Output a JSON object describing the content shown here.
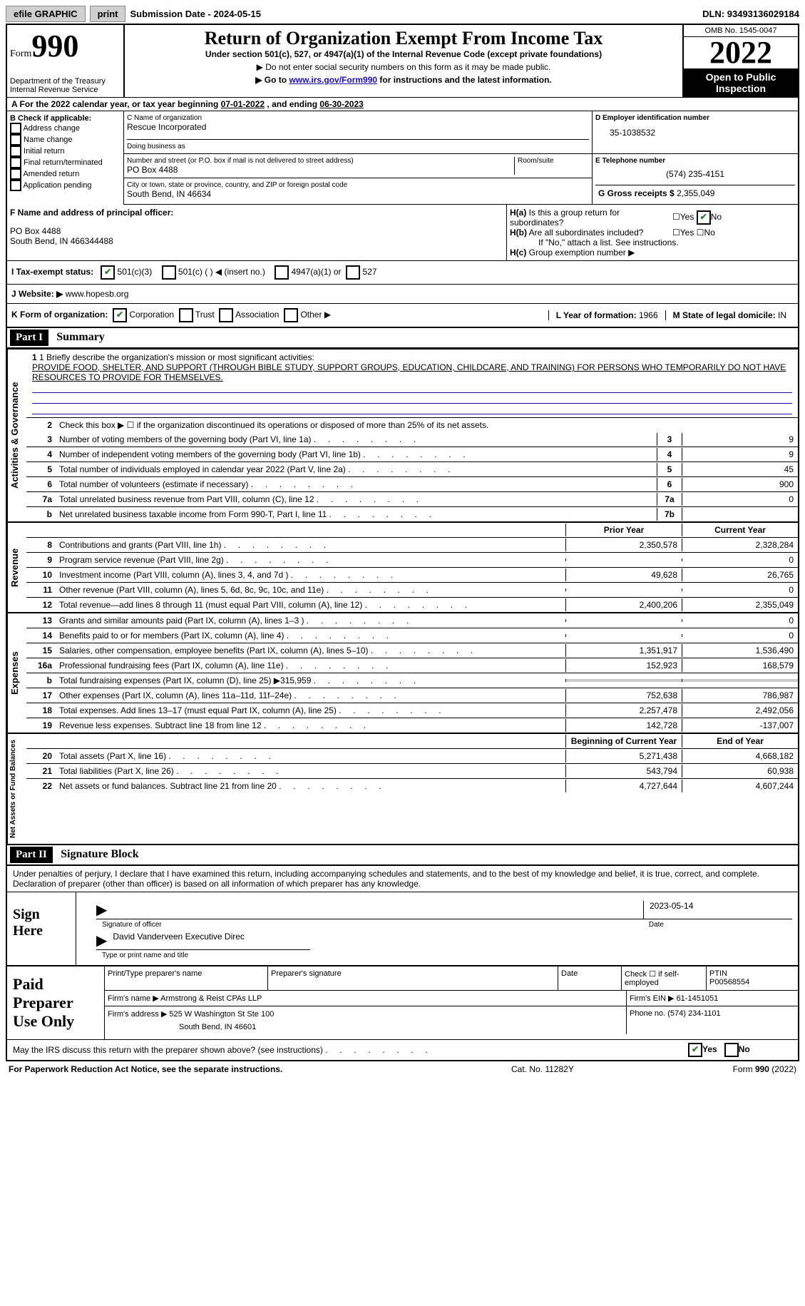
{
  "topbar": {
    "efile": "efile GRAPHIC",
    "print": "print",
    "subdate_label": "Submission Date - ",
    "subdate": "2024-05-15",
    "dln_label": "DLN: ",
    "dln": "93493136029184"
  },
  "header": {
    "form_word": "Form",
    "form_num": "990",
    "dept": "Department of the Treasury\nInternal Revenue Service",
    "title": "Return of Organization Exempt From Income Tax",
    "subtitle": "Under section 501(c), 527, or 4947(a)(1) of the Internal Revenue Code (except private foundations)",
    "note1": "▶ Do not enter social security numbers on this form as it may be made public.",
    "note2_pre": "▶ Go to ",
    "note2_link": "www.irs.gov/Form990",
    "note2_post": " for instructions and the latest information.",
    "omb": "OMB No. 1545-0047",
    "year": "2022",
    "open": "Open to Public Inspection"
  },
  "row_a": {
    "label": "A For the 2022 calendar year, or tax year beginning ",
    "begin": "07-01-2022",
    "mid": "   , and ending ",
    "end": "06-30-2023"
  },
  "col_b": {
    "label": "B Check if applicable:",
    "opts": [
      "Address change",
      "Name change",
      "Initial return",
      "Final return/terminated",
      "Amended return",
      "Application pending"
    ]
  },
  "c": {
    "name_label": "C Name of organization",
    "name": "Rescue Incorporated",
    "dba_label": "Doing business as",
    "dba": "",
    "addr_label": "Number and street (or P.O. box if mail is not delivered to street address)",
    "room_label": "Room/suite",
    "addr": "PO Box 4488",
    "city_label": "City or town, state or province, country, and ZIP or foreign postal code",
    "city": "South Bend, IN  46634"
  },
  "d": {
    "label": "D Employer identification number",
    "ein": "35-1038532"
  },
  "e": {
    "label": "E Telephone number",
    "phone": "(574) 235-4151"
  },
  "g": {
    "label": "G Gross receipts $ ",
    "val": "2,355,049"
  },
  "f": {
    "label": "F  Name and address of principal officer:",
    "name": "",
    "addr1": "PO Box 4488",
    "addr2": "South Bend, IN  466344488"
  },
  "h": {
    "ha": "H(a)  Is this a group return for subordinates?",
    "hb": "H(b)  Are all subordinates included?",
    "hb_note": "If \"No,\" attach a list. See instructions.",
    "hc": "H(c)  Group exemption number ▶",
    "yes": "Yes",
    "no": "No"
  },
  "i": {
    "label": "I   Tax-exempt status:",
    "opt1": "501(c)(3)",
    "opt2": "501(c) (  ) ◀ (insert no.)",
    "opt3": "4947(a)(1) or",
    "opt4": "527"
  },
  "j": {
    "label": "J   Website: ▶  ",
    "val": "www.hopesb.org"
  },
  "k": {
    "label": "K Form of organization:",
    "opts": [
      "Corporation",
      "Trust",
      "Association",
      "Other ▶"
    ]
  },
  "l": {
    "label": "L Year of formation: ",
    "val": "1966"
  },
  "m": {
    "label": "M State of legal domicile: ",
    "val": "IN"
  },
  "part1": {
    "header": "Part I",
    "title": "Summary"
  },
  "mission": {
    "label": "1   Briefly describe the organization's mission or most significant activities:",
    "text": "PROVIDE FOOD, SHELTER, AND SUPPORT (THROUGH BIBLE STUDY, SUPPORT GROUPS, EDUCATION, CHILDCARE, AND TRAINING) FOR PERSONS WHO TEMPORARILY DO NOT HAVE RESOURCES TO PROVIDE FOR THEMSELVES."
  },
  "line2": "Check this box ▶ ☐  if the organization discontinued its operations or disposed of more than 25% of its net assets.",
  "lines_ag": [
    {
      "n": "3",
      "t": "Number of voting members of the governing body (Part VI, line 1a)",
      "b": "3",
      "v": "9"
    },
    {
      "n": "4",
      "t": "Number of independent voting members of the governing body (Part VI, line 1b)",
      "b": "4",
      "v": "9"
    },
    {
      "n": "5",
      "t": "Total number of individuals employed in calendar year 2022 (Part V, line 2a)",
      "b": "5",
      "v": "45"
    },
    {
      "n": "6",
      "t": "Total number of volunteers (estimate if necessary)",
      "b": "6",
      "v": "900"
    },
    {
      "n": "7a",
      "t": "Total unrelated business revenue from Part VIII, column (C), line 12",
      "b": "7a",
      "v": "0"
    },
    {
      "n": "b",
      "t": "Net unrelated business taxable income from Form 990-T, Part I, line 11",
      "b": "7b",
      "v": ""
    }
  ],
  "col_hdr": {
    "prior": "Prior Year",
    "current": "Current Year",
    "beg": "Beginning of Current Year",
    "end": "End of Year"
  },
  "revenue": [
    {
      "n": "8",
      "t": "Contributions and grants (Part VIII, line 1h)",
      "p": "2,350,578",
      "c": "2,328,284"
    },
    {
      "n": "9",
      "t": "Program service revenue (Part VIII, line 2g)",
      "p": "",
      "c": "0"
    },
    {
      "n": "10",
      "t": "Investment income (Part VIII, column (A), lines 3, 4, and 7d )",
      "p": "49,628",
      "c": "26,765"
    },
    {
      "n": "11",
      "t": "Other revenue (Part VIII, column (A), lines 5, 6d, 8c, 9c, 10c, and 11e)",
      "p": "",
      "c": "0"
    },
    {
      "n": "12",
      "t": "Total revenue—add lines 8 through 11 (must equal Part VIII, column (A), line 12)",
      "p": "2,400,206",
      "c": "2,355,049"
    }
  ],
  "expenses": [
    {
      "n": "13",
      "t": "Grants and similar amounts paid (Part IX, column (A), lines 1–3 )",
      "p": "",
      "c": "0"
    },
    {
      "n": "14",
      "t": "Benefits paid to or for members (Part IX, column (A), line 4)",
      "p": "",
      "c": "0"
    },
    {
      "n": "15",
      "t": "Salaries, other compensation, employee benefits (Part IX, column (A), lines 5–10)",
      "p": "1,351,917",
      "c": "1,536,490"
    },
    {
      "n": "16a",
      "t": "Professional fundraising fees (Part IX, column (A), line 11e)",
      "p": "152,923",
      "c": "168,579"
    },
    {
      "n": "b",
      "t": "Total fundraising expenses (Part IX, column (D), line 25) ▶315,959",
      "p": "GRAY",
      "c": "GRAY"
    },
    {
      "n": "17",
      "t": "Other expenses (Part IX, column (A), lines 11a–11d, 11f–24e)",
      "p": "752,638",
      "c": "786,987"
    },
    {
      "n": "18",
      "t": "Total expenses. Add lines 13–17 (must equal Part IX, column (A), line 25)",
      "p": "2,257,478",
      "c": "2,492,056"
    },
    {
      "n": "19",
      "t": "Revenue less expenses. Subtract line 18 from line 12",
      "p": "142,728",
      "c": "-137,007"
    }
  ],
  "netassets": [
    {
      "n": "20",
      "t": "Total assets (Part X, line 16)",
      "p": "5,271,438",
      "c": "4,668,182"
    },
    {
      "n": "21",
      "t": "Total liabilities (Part X, line 26)",
      "p": "543,794",
      "c": "60,938"
    },
    {
      "n": "22",
      "t": "Net assets or fund balances. Subtract line 21 from line 20",
      "p": "4,727,644",
      "c": "4,607,244"
    }
  ],
  "sidelabels": {
    "ag": "Activities & Governance",
    "rev": "Revenue",
    "exp": "Expenses",
    "na": "Net Assets or Fund Balances"
  },
  "part2": {
    "header": "Part II",
    "title": "Signature Block",
    "penalty": "Under penalties of perjury, I declare that I have examined this return, including accompanying schedules and statements, and to the best of my knowledge and belief, it is true, correct, and complete. Declaration of preparer (other than officer) is based on all information of which preparer has any knowledge."
  },
  "sign": {
    "label": "Sign Here",
    "sig_cap": "Signature of officer",
    "date": "2023-05-14",
    "date_cap": "Date",
    "name": "David Vanderveen  Executive Direc",
    "name_cap": "Type or print name and title"
  },
  "preparer": {
    "label": "Paid Preparer Use Only",
    "name_label": "Print/Type preparer's name",
    "sig_label": "Preparer's signature",
    "date_label": "Date",
    "check_label": "Check ☐ if self-employed",
    "ptin_label": "PTIN",
    "ptin": "P00568554",
    "firm_label": "Firm's name    ▶ ",
    "firm": "Armstrong & Reist CPAs LLP",
    "ein_label": "Firm's EIN ▶ ",
    "ein": "61-1451051",
    "addr_label": "Firm's address ▶ ",
    "addr1": "525 W Washington St Ste 100",
    "addr2": "South Bend, IN  46601",
    "phone_label": "Phone no. ",
    "phone": "(574) 234-1101"
  },
  "discuss": {
    "text": "May the IRS discuss this return with the preparer shown above? (see instructions)",
    "yes": "Yes",
    "no": "No"
  },
  "footer": {
    "left": "For Paperwork Reduction Act Notice, see the separate instructions.",
    "mid": "Cat. No. 11282Y",
    "right": "Form 990 (2022)"
  }
}
